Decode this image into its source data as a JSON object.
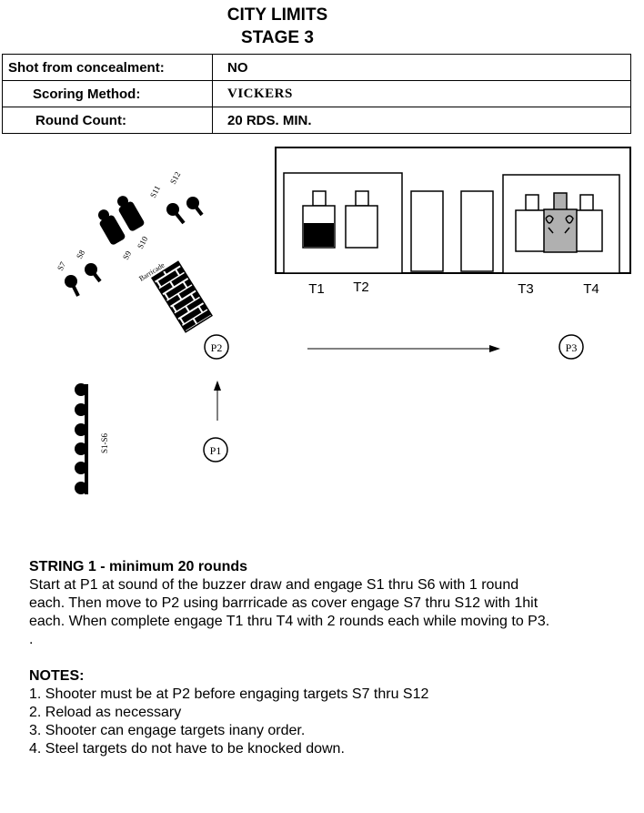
{
  "header": {
    "title_line1": "CITY LIMITS",
    "title_line2": "STAGE 3"
  },
  "info_table": [
    {
      "label": "Shot from concealment:",
      "value": "NO"
    },
    {
      "label": "Scoring Method:",
      "value": "VICKERS"
    },
    {
      "label": "Round Count:",
      "value": "20 RDS.  MIN."
    }
  ],
  "diagram": {
    "steel_labels": [
      "S11",
      "S12",
      "S9",
      "S10",
      "S7",
      "S8",
      "S1-S6"
    ],
    "barricade_label": "Barricade",
    "target_labels": [
      "T1",
      "T2",
      "T3",
      "T4"
    ],
    "position_labels": [
      "P1",
      "P2",
      "P3"
    ]
  },
  "string": {
    "heading": "STRING 1 - minimum 20 rounds",
    "lines": [
      "Start at P1 at sound of the buzzer draw and engage S1 thru S6 with 1 round",
      "each. Then move to P2 using barrricade as cover engage S7 thru S12 with 1hit",
      "each.  When complete engage T1 thru T4 with 2 rounds each while moving to P3.",
      "."
    ]
  },
  "notes": {
    "heading": "NOTES:",
    "items": [
      "1. Shooter must be at P2 before  engaging targets S7 thru S12",
      "2. Reload as necessary",
      "3. Shooter can engage targets inany order.",
      "4. Steel targets do not have to be knocked down."
    ]
  }
}
